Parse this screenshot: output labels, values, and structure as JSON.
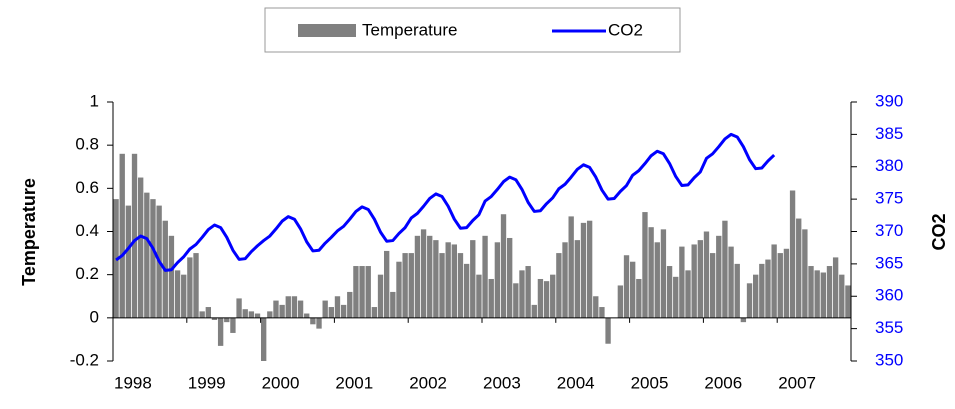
{
  "chart_data": {
    "type": "bar_line",
    "categories": [
      "1998",
      null,
      null,
      null,
      null,
      null,
      null,
      null,
      null,
      null,
      null,
      null,
      "1999",
      null,
      null,
      null,
      null,
      null,
      null,
      null,
      null,
      null,
      null,
      null,
      "2000",
      null,
      null,
      null,
      null,
      null,
      null,
      null,
      null,
      null,
      null,
      null,
      "2001",
      null,
      null,
      null,
      null,
      null,
      null,
      null,
      null,
      null,
      null,
      null,
      "2002",
      null,
      null,
      null,
      null,
      null,
      null,
      null,
      null,
      null,
      null,
      null,
      "2003",
      null,
      null,
      null,
      null,
      null,
      null,
      null,
      null,
      null,
      null,
      null,
      "2004",
      null,
      null,
      null,
      null,
      null,
      null,
      null,
      null,
      null,
      null,
      null,
      "2005",
      null,
      null,
      null,
      null,
      null,
      null,
      null,
      null,
      null,
      null,
      null,
      "2006",
      null,
      null,
      null,
      null,
      null,
      null,
      null,
      null,
      null,
      null,
      null,
      "2007",
      null,
      null,
      null,
      null,
      null,
      null,
      null,
      null,
      null,
      null,
      null
    ],
    "series": [
      {
        "name": "Temperature",
        "color": "#808080",
        "kind": "bar",
        "axis": "y",
        "values": [
          0.55,
          0.76,
          0.52,
          0.76,
          0.65,
          0.58,
          0.55,
          0.52,
          0.45,
          0.38,
          0.22,
          0.2,
          0.28,
          0.3,
          0.03,
          0.05,
          -0.01,
          -0.13,
          -0.02,
          -0.07,
          0.09,
          0.04,
          0.03,
          0.02,
          -0.2,
          0.03,
          0.08,
          0.06,
          0.1,
          0.1,
          0.08,
          0.02,
          -0.03,
          -0.05,
          0.08,
          0.05,
          0.1,
          0.06,
          0.12,
          0.24,
          0.24,
          0.24,
          0.05,
          0.2,
          0.31,
          0.12,
          0.26,
          0.3,
          0.3,
          0.38,
          0.41,
          0.38,
          0.36,
          0.3,
          0.35,
          0.34,
          0.3,
          0.25,
          0.36,
          0.2,
          0.38,
          0.18,
          0.35,
          0.48,
          0.37,
          0.16,
          0.22,
          0.24,
          0.06,
          0.18,
          0.17,
          0.2,
          0.3,
          0.35,
          0.47,
          0.36,
          0.44,
          0.45,
          0.1,
          0.05,
          -0.12,
          0.0,
          0.15,
          0.29,
          0.26,
          0.18,
          0.49,
          0.42,
          0.35,
          0.41,
          0.24,
          0.19,
          0.33,
          0.22,
          0.34,
          0.36,
          0.4,
          0.3,
          0.38,
          0.45,
          0.33,
          0.25,
          -0.02,
          0.16,
          0.2,
          0.25,
          0.27,
          0.34,
          0.3,
          0.32,
          0.59,
          0.46,
          0.41,
          0.24,
          0.22,
          0.21,
          0.24,
          0.28,
          0.2,
          0.15
        ]
      },
      {
        "name": "CO2",
        "color": "#0000ff",
        "kind": "line",
        "axis": "y2",
        "values": [
          365.6,
          366.3,
          367.4,
          368.6,
          369.3,
          368.9,
          367.4,
          365.4,
          364.0,
          364.1,
          365.2,
          366.1,
          367.3,
          368.0,
          369.1,
          370.3,
          371.0,
          370.6,
          369.1,
          367.1,
          365.7,
          365.8,
          366.9,
          367.8,
          368.6,
          369.3,
          370.4,
          371.6,
          372.3,
          371.9,
          370.4,
          368.4,
          367.0,
          367.1,
          368.2,
          369.1,
          370.1,
          370.8,
          371.9,
          373.1,
          373.8,
          373.4,
          371.9,
          369.9,
          368.5,
          368.6,
          369.7,
          370.6,
          372.1,
          372.8,
          373.9,
          375.1,
          375.8,
          375.4,
          373.9,
          371.9,
          370.5,
          370.6,
          371.7,
          372.6,
          374.7,
          375.4,
          376.5,
          377.7,
          378.4,
          378.0,
          376.5,
          374.5,
          373.1,
          373.2,
          374.3,
          375.2,
          376.6,
          377.3,
          378.4,
          379.6,
          380.3,
          379.9,
          378.4,
          376.4,
          375.0,
          375.1,
          376.2,
          377.1,
          378.7,
          379.4,
          380.5,
          381.7,
          382.4,
          382.0,
          380.5,
          378.5,
          377.1,
          377.2,
          378.3,
          379.2,
          381.3,
          382.0,
          383.1,
          384.3,
          385.0,
          384.6,
          383.1,
          381.1,
          379.7,
          379.8,
          380.9,
          381.8,
          null,
          null,
          null,
          null,
          null,
          null,
          null,
          null,
          null,
          null,
          null,
          null
        ]
      }
    ],
    "y_label": "Temperature",
    "y2_label": "CO2",
    "ylim": [
      -0.2,
      1
    ],
    "yticks": [
      -0.2,
      0,
      0.2,
      0.4,
      0.6,
      0.8,
      1
    ],
    "y2lim": [
      350,
      390
    ],
    "y2ticks": [
      350,
      355,
      360,
      365,
      370,
      375,
      380,
      385,
      390
    ],
    "y2_color": "#0000ff",
    "grid": false,
    "legend": "top"
  }
}
